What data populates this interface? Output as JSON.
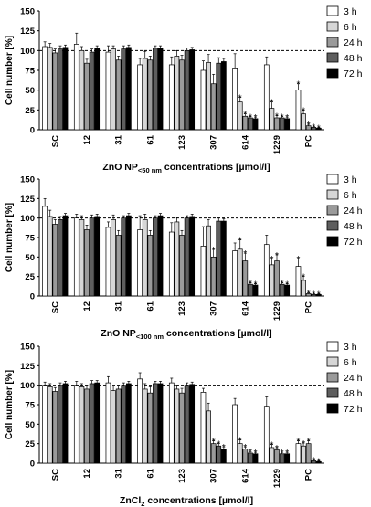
{
  "colors": {
    "3 h": "#ffffff",
    "6 h": "#d6d6d6",
    "24 h": "#9a9a9a",
    "48 h": "#5e5e5e",
    "72 h": "#000000"
  },
  "chart_data": [
    {
      "type": "bar",
      "ylabel": "Cell number [%]",
      "xlabel_main": "ZnO NP",
      "xlabel_sub": "<50 nm",
      "xlabel_rest": " concentrations [µmol/l]",
      "ylim": [
        0,
        150
      ],
      "yticks": [
        "0",
        "25",
        "50",
        "75",
        "100",
        "125",
        "150"
      ],
      "reference_line": 100,
      "categories": [
        "SC",
        "12",
        "31",
        "61",
        "123",
        "307",
        "614",
        "1229",
        "PC"
      ],
      "series": [
        {
          "name": "3 h",
          "values": [
            105,
            108,
            98,
            82,
            82,
            75,
            78,
            82,
            50
          ],
          "errors": [
            6,
            14,
            8,
            8,
            10,
            12,
            18,
            10,
            8
          ],
          "stars": [
            0,
            0,
            0,
            0,
            0,
            0,
            0,
            0,
            1
          ]
        },
        {
          "name": "6 h",
          "values": [
            104,
            100,
            102,
            90,
            93,
            85,
            35,
            27,
            20
          ],
          "errors": [
            5,
            5,
            4,
            9,
            7,
            10,
            6,
            8,
            5
          ],
          "stars": [
            0,
            0,
            0,
            0,
            0,
            0,
            1,
            1,
            1
          ]
        },
        {
          "name": "24 h",
          "values": [
            97,
            84,
            88,
            88,
            88,
            58,
            17,
            15,
            5
          ],
          "errors": [
            5,
            5,
            5,
            5,
            6,
            12,
            3,
            3,
            2
          ],
          "stars": [
            0,
            0,
            0,
            0,
            0,
            0,
            1,
            1,
            1
          ]
        },
        {
          "name": "48 h",
          "values": [
            102,
            98,
            102,
            103,
            100,
            84,
            15,
            15,
            3
          ],
          "errors": [
            4,
            4,
            4,
            3,
            3,
            7,
            2,
            2,
            1
          ],
          "stars": [
            0,
            0,
            0,
            0,
            0,
            0,
            1,
            1,
            1
          ]
        },
        {
          "name": "72 h",
          "values": [
            104,
            103,
            104,
            103,
            101,
            86,
            14,
            14,
            2
          ],
          "errors": [
            3,
            3,
            3,
            3,
            3,
            4,
            2,
            2,
            1
          ],
          "stars": [
            0,
            0,
            0,
            0,
            0,
            0,
            1,
            1,
            1
          ]
        }
      ]
    },
    {
      "type": "bar",
      "ylabel": "Cell number [%]",
      "xlabel_main": "ZnO NP",
      "xlabel_sub": "<100 nm",
      "xlabel_rest": " concentrations [µmol/l]",
      "ylim": [
        0,
        150
      ],
      "yticks": [
        "0",
        "25",
        "50",
        "75",
        "100",
        "125",
        "150"
      ],
      "reference_line": 100,
      "categories": [
        "SC",
        "12",
        "31",
        "61",
        "123",
        "307",
        "614",
        "1229",
        "PC"
      ],
      "series": [
        {
          "name": "3 h",
          "values": [
            115,
            100,
            88,
            85,
            82,
            64,
            58,
            66,
            38
          ],
          "errors": [
            10,
            5,
            7,
            18,
            12,
            25,
            10,
            12,
            10
          ],
          "stars": [
            0,
            0,
            0,
            0,
            0,
            0,
            0,
            0,
            1
          ]
        },
        {
          "name": "6 h",
          "values": [
            102,
            98,
            98,
            98,
            95,
            90,
            60,
            40,
            20
          ],
          "errors": [
            8,
            5,
            6,
            7,
            6,
            8,
            12,
            8,
            5
          ],
          "stars": [
            0,
            0,
            0,
            0,
            0,
            0,
            1,
            1,
            1
          ]
        },
        {
          "name": "24 h",
          "values": [
            92,
            85,
            78,
            78,
            78,
            50,
            45,
            45,
            3
          ],
          "errors": [
            6,
            6,
            6,
            6,
            6,
            10,
            10,
            8,
            1
          ],
          "stars": [
            0,
            0,
            0,
            0,
            0,
            1,
            1,
            1,
            1
          ]
        },
        {
          "name": "48 h",
          "values": [
            98,
            100,
            100,
            100,
            100,
            96,
            15,
            15,
            2
          ],
          "errors": [
            4,
            4,
            3,
            3,
            3,
            4,
            2,
            2,
            1
          ],
          "stars": [
            0,
            0,
            0,
            0,
            0,
            0,
            1,
            1,
            1
          ]
        },
        {
          "name": "72 h",
          "values": [
            103,
            102,
            103,
            103,
            102,
            96,
            14,
            14,
            2
          ],
          "errors": [
            3,
            3,
            3,
            3,
            3,
            3,
            2,
            2,
            1
          ],
          "stars": [
            0,
            0,
            0,
            0,
            0,
            0,
            1,
            1,
            1
          ]
        }
      ]
    },
    {
      "type": "bar",
      "ylabel": "Cell number [%]",
      "xlabel_main": "ZnCl",
      "xlabel_sub": "2",
      "xlabel_rest": " concentrations [µmol/l]",
      "ylim": [
        0,
        150
      ],
      "yticks": [
        "0",
        "25",
        "50",
        "75",
        "100",
        "125",
        "150"
      ],
      "reference_line": 100,
      "categories": [
        "SC",
        "12",
        "31",
        "61",
        "123",
        "307",
        "614",
        "1229",
        "PC"
      ],
      "series": [
        {
          "name": "3 h",
          "values": [
            100,
            100,
            103,
            108,
            103,
            91,
            75,
            73,
            25
          ],
          "errors": [
            4,
            5,
            8,
            8,
            6,
            5,
            8,
            12,
            4
          ],
          "stars": [
            0,
            0,
            0,
            0,
            0,
            0,
            0,
            0,
            1
          ]
        },
        {
          "name": "6 h",
          "values": [
            98,
            98,
            93,
            95,
            95,
            67,
            25,
            20,
            22
          ],
          "errors": [
            4,
            4,
            6,
            7,
            5,
            10,
            5,
            4,
            4
          ],
          "stars": [
            0,
            0,
            0,
            0,
            0,
            0,
            1,
            1,
            1
          ]
        },
        {
          "name": "24 h",
          "values": [
            92,
            95,
            95,
            90,
            90,
            25,
            18,
            17,
            25
          ],
          "errors": [
            5,
            5,
            5,
            8,
            6,
            4,
            3,
            3,
            4
          ],
          "stars": [
            0,
            0,
            0,
            0,
            0,
            1,
            1,
            1,
            1
          ]
        },
        {
          "name": "48 h",
          "values": [
            100,
            102,
            100,
            102,
            100,
            22,
            13,
            12,
            3
          ],
          "errors": [
            3,
            4,
            3,
            3,
            3,
            3,
            2,
            2,
            1
          ],
          "stars": [
            0,
            0,
            0,
            0,
            0,
            1,
            1,
            1,
            1
          ]
        },
        {
          "name": "72 h",
          "values": [
            102,
            103,
            102,
            102,
            101,
            18,
            12,
            12,
            2
          ],
          "errors": [
            3,
            3,
            3,
            3,
            3,
            3,
            2,
            2,
            1
          ],
          "stars": [
            0,
            0,
            0,
            0,
            0,
            1,
            1,
            1,
            1
          ]
        }
      ]
    }
  ]
}
